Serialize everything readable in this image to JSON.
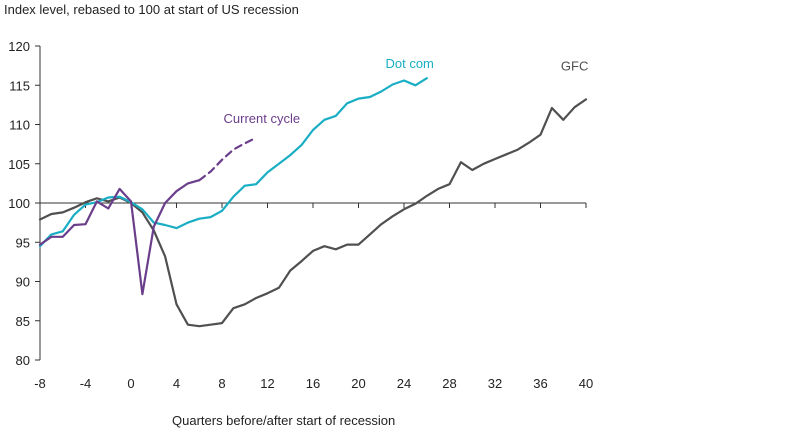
{
  "chart_data": {
    "type": "line",
    "title": "",
    "ylabel": "Index level, rebased to 100 at start of US recession",
    "xlabel": "Quarters before/after start of recession",
    "xlim": [
      -8,
      40
    ],
    "ylim": [
      80,
      120
    ],
    "xticks": [
      -8,
      -4,
      0,
      4,
      8,
      12,
      16,
      20,
      24,
      28,
      32,
      36,
      40
    ],
    "yticks": [
      80,
      85,
      90,
      95,
      100,
      105,
      110,
      115,
      120
    ],
    "grid": false,
    "series": [
      {
        "name": "GFC",
        "color": "#505050",
        "style": "solid",
        "x": [
          -8,
          -7,
          -6,
          -5,
          -4,
          -3,
          -2,
          -1,
          0,
          1,
          2,
          3,
          4,
          5,
          6,
          7,
          8,
          9,
          10,
          11,
          12,
          13,
          14,
          15,
          16,
          17,
          18,
          19,
          20,
          21,
          22,
          23,
          24,
          25,
          26,
          27,
          28,
          29,
          30,
          31,
          32,
          33,
          34,
          35,
          36,
          37,
          38,
          39,
          40
        ],
        "y": [
          97.9,
          98.6,
          98.8,
          99.4,
          100.1,
          100.6,
          100.2,
          100.7,
          100.0,
          98.8,
          96.5,
          93.2,
          87.1,
          84.5,
          84.3,
          84.5,
          84.7,
          86.6,
          87.1,
          87.9,
          88.5,
          89.2,
          91.4,
          92.6,
          93.9,
          94.5,
          94.1,
          94.7,
          94.7,
          96.0,
          97.3,
          98.3,
          99.2,
          99.9,
          100.9,
          101.8,
          102.4,
          105.2,
          104.2,
          105.0,
          105.6,
          106.2,
          106.8,
          107.7,
          108.7,
          112.1,
          110.6,
          112.2,
          113.2
        ]
      },
      {
        "name": "Dot com",
        "color": "#19aec4",
        "style": "solid",
        "x": [
          -8,
          -7,
          -6,
          -5,
          -4,
          -3,
          -2,
          -1,
          0,
          1,
          2,
          3,
          4,
          5,
          6,
          7,
          8,
          9,
          10,
          11,
          12,
          13,
          14,
          15,
          16,
          17,
          18,
          19,
          20,
          21,
          22,
          23,
          24,
          25,
          26
        ],
        "y": [
          94.5,
          96.0,
          96.4,
          98.5,
          99.8,
          100.1,
          100.7,
          100.8,
          100.1,
          99.2,
          97.5,
          97.2,
          96.8,
          97.5,
          98.0,
          98.2,
          99.0,
          100.8,
          102.2,
          102.4,
          103.9,
          105.0,
          106.1,
          107.4,
          109.3,
          110.6,
          111.1,
          112.7,
          113.3,
          113.5,
          114.2,
          115.1,
          115.6,
          115.0,
          115.9
        ]
      },
      {
        "name": "Current cycle",
        "color": "#6b3e8c",
        "style": "solid",
        "x": [
          -8,
          -7,
          -6,
          -5,
          -4,
          -3,
          -2,
          -1,
          0,
          1,
          2,
          3,
          4,
          5,
          6
        ],
        "y": [
          94.7,
          95.7,
          95.7,
          97.2,
          97.3,
          100.2,
          99.3,
          101.8,
          100.2,
          88.4,
          97.0,
          100.0,
          101.5,
          102.5,
          102.9
        ]
      },
      {
        "name": "Current cycle (projection)",
        "color": "#6b3e8c",
        "style": "dashed",
        "x": [
          6,
          7,
          8,
          9,
          10,
          11
        ],
        "y": [
          102.9,
          104.0,
          105.5,
          106.8,
          107.6,
          108.3
        ]
      }
    ],
    "annotations": [
      {
        "text": "Dot com",
        "x": 24.5,
        "y": 117.2,
        "color": "#19aec4"
      },
      {
        "text": "GFC",
        "x": 39.0,
        "y": 116.9,
        "color": "#505050"
      },
      {
        "text": "Current cycle",
        "x": 11.5,
        "y": 110.2,
        "color": "#6b3e8c"
      }
    ]
  }
}
